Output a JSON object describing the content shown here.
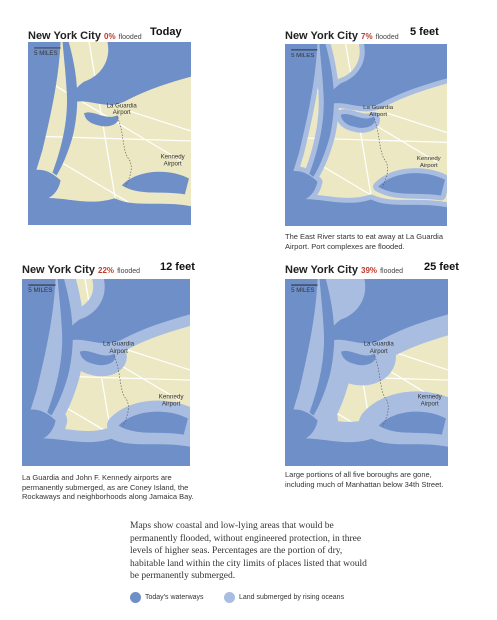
{
  "panels": [
    {
      "city": "New York City",
      "percent": "0%",
      "flooded": "flooded",
      "level": "Today",
      "scale": "5 MILES",
      "airport1": [
        "La Guardia",
        "Airport"
      ],
      "airport2": [
        "Kennedy",
        "Airport"
      ]
    },
    {
      "city": "New York City",
      "percent": "7%",
      "flooded": "flooded",
      "level": "5 feet",
      "scale": "5 MILES",
      "airport1": [
        "La Guardia",
        "Airport"
      ],
      "airport2": [
        "Kennedy",
        "Airport"
      ],
      "caption": "The East River starts to eat away at La Guardia Airport. Port complexes are flooded."
    },
    {
      "city": "New York City",
      "percent": "22%",
      "flooded": "flooded",
      "level": "12 feet",
      "scale": "5 MILES",
      "airport1": [
        "La Guardia",
        "Airport"
      ],
      "airport2": [
        "Kennedy",
        "Airport"
      ],
      "caption": "La Guardia and John F. Kennedy airports are permanently submerged, as are Coney Island, the Rockaways and neighborhoods along Jamaica Bay."
    },
    {
      "city": "New York City",
      "percent": "39%",
      "flooded": "flooded",
      "level": "25 feet",
      "scale": "5 MILES",
      "airport1": [
        "La Guardia",
        "Airport"
      ],
      "airport2": [
        "Kennedy",
        "Airport"
      ],
      "caption": "Large portions of all five boroughs are gone, including much of Manhattan below 34th Street."
    }
  ],
  "notes": "Maps show coastal and low-lying areas that would be permanently flooded, without engineered protection, in three levels of higher seas. Percentages are the portion of dry, habitable land within the city limits of places listed that would be permanently submerged.",
  "legend": [
    "Today's waterways",
    "Land submerged by rising oceans"
  ]
}
